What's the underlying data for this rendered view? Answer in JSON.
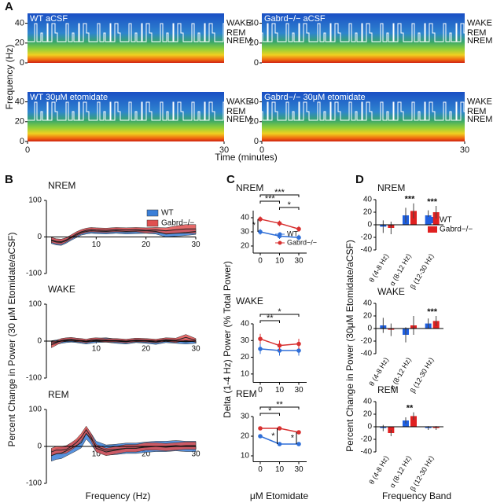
{
  "figure": {
    "panels": [
      "A",
      "B",
      "C",
      "D"
    ],
    "a_y": "Frequency (Hz)",
    "a_x": "Time (minutes)",
    "b_y": "Percent Change in Power (30 μM Etomidate/aCSF)",
    "b_x": "Frequency (Hz)",
    "c_y": "Delta (1-4 Hz) Power (% Total Power)",
    "c_x": "μM Etomidate",
    "d_y": "Percent Change in Power (30μM Etomidate/aCSF)",
    "d_x": "Frequency Band"
  },
  "chart_data": [
    {
      "type": "spectrogram",
      "title": "WT aCSF",
      "states": [
        "WAKE",
        "REM",
        "NREM"
      ],
      "ylim": [
        0,
        50
      ],
      "yticks": [
        0,
        20,
        40
      ]
    },
    {
      "type": "spectrogram",
      "title": "Gabrd−/− aCSF",
      "states": [
        "WAKE",
        "REM",
        "NREM"
      ],
      "ylim": [
        0,
        50
      ],
      "yticks": [
        0,
        20,
        40
      ]
    },
    {
      "type": "spectrogram",
      "title": "WT 30μM etomidate",
      "states": [
        "WAKE",
        "REM",
        "NREM"
      ],
      "ylim": [
        0,
        50
      ],
      "yticks": [
        0,
        20,
        40
      ],
      "xlim": [
        0,
        30
      ],
      "xticks": [
        0,
        30
      ]
    },
    {
      "type": "spectrogram",
      "title": "Gabrd−/− 30μM etomidate",
      "states": [
        "WAKE",
        "REM",
        "NREM"
      ],
      "ylim": [
        0,
        50
      ],
      "yticks": [
        0,
        20,
        40
      ],
      "xlim": [
        0,
        30
      ],
      "xticks": [
        0,
        30
      ]
    },
    {
      "type": "band",
      "title": "NREM",
      "xlim": [
        0,
        30
      ],
      "xticks": [
        10,
        20,
        30
      ],
      "ylim": [
        -100,
        100
      ],
      "yticks": [
        -100,
        0,
        100
      ],
      "x": [
        1,
        2,
        3,
        4,
        5,
        6,
        7,
        8,
        9,
        10,
        12,
        14,
        16,
        18,
        20,
        22,
        24,
        26,
        28,
        30
      ],
      "series": [
        {
          "name": "WT",
          "color": "#3a7fd8",
          "values": [
            -10,
            -14,
            -15,
            -10,
            -2,
            5,
            12,
            15,
            17,
            16,
            15,
            17,
            15,
            16,
            17,
            15,
            8,
            10,
            12,
            15
          ],
          "errors": [
            8,
            8,
            8,
            7,
            7,
            7,
            7,
            7,
            7,
            7,
            7,
            7,
            7,
            7,
            7,
            7,
            8,
            8,
            8,
            8
          ]
        },
        {
          "name": "Gabrd−/−",
          "color": "#e05050",
          "values": [
            -8,
            -12,
            -13,
            -8,
            0,
            8,
            14,
            18,
            20,
            19,
            18,
            20,
            19,
            20,
            18,
            19,
            17,
            20,
            22,
            22
          ],
          "errors": [
            7,
            7,
            7,
            6,
            6,
            6,
            6,
            6,
            6,
            6,
            6,
            6,
            6,
            6,
            7,
            7,
            8,
            10,
            12,
            12
          ]
        }
      ]
    },
    {
      "type": "band",
      "title": "WAKE",
      "xlim": [
        0,
        30
      ],
      "xticks": [
        10,
        20,
        30
      ],
      "ylim": [
        -100,
        100
      ],
      "yticks": [
        -100,
        0,
        100
      ],
      "x": [
        1,
        2,
        3,
        4,
        5,
        6,
        7,
        8,
        9,
        10,
        12,
        14,
        16,
        18,
        20,
        22,
        24,
        26,
        28,
        30
      ],
      "series": [
        {
          "color": "#3a7fd8",
          "values": [
            -5,
            -3,
            0,
            2,
            3,
            2,
            0,
            -2,
            0,
            2,
            3,
            0,
            -2,
            2,
            0,
            -3,
            2,
            0,
            -2,
            0
          ],
          "errors": [
            6,
            6,
            6,
            6,
            6,
            6,
            6,
            6,
            6,
            6,
            6,
            6,
            6,
            6,
            6,
            6,
            6,
            6,
            6,
            6
          ]
        },
        {
          "color": "#e05050",
          "values": [
            -10,
            -5,
            2,
            4,
            5,
            3,
            2,
            0,
            3,
            4,
            2,
            2,
            0,
            3,
            2,
            0,
            4,
            2,
            10,
            2
          ],
          "errors": [
            8,
            6,
            5,
            5,
            5,
            5,
            5,
            5,
            5,
            5,
            5,
            5,
            5,
            5,
            5,
            5,
            5,
            6,
            8,
            5
          ]
        }
      ]
    },
    {
      "type": "band",
      "title": "REM",
      "xlim": [
        0,
        30
      ],
      "xticks": [
        10,
        20,
        30
      ],
      "ylim": [
        -100,
        100
      ],
      "yticks": [
        -100,
        0,
        100
      ],
      "x": [
        1,
        2,
        3,
        4,
        5,
        6,
        7,
        8,
        9,
        10,
        12,
        14,
        16,
        18,
        20,
        22,
        24,
        26,
        28,
        30
      ],
      "series": [
        {
          "color": "#3a7fd8",
          "values": [
            -25,
            -20,
            -18,
            -12,
            -5,
            2,
            10,
            35,
            20,
            0,
            -10,
            -8,
            -5,
            -5,
            -2,
            0,
            0,
            2,
            0,
            0
          ],
          "errors": [
            15,
            15,
            15,
            14,
            14,
            14,
            14,
            15,
            15,
            14,
            14,
            14,
            14,
            14,
            14,
            14,
            14,
            14,
            14,
            14
          ]
        },
        {
          "color": "#e05050",
          "values": [
            -15,
            -10,
            -10,
            -8,
            0,
            10,
            25,
            45,
            25,
            -5,
            -15,
            -10,
            -5,
            -5,
            0,
            0,
            -2,
            0,
            2,
            2
          ],
          "errors": [
            10,
            10,
            10,
            10,
            10,
            10,
            10,
            10,
            10,
            10,
            10,
            10,
            10,
            10,
            10,
            10,
            10,
            10,
            10,
            10
          ]
        }
      ]
    },
    {
      "type": "line",
      "title": "NREM",
      "categories": [
        "0",
        "10",
        "30"
      ],
      "ylim": [
        15,
        45
      ],
      "yticks": [
        20,
        30,
        40
      ],
      "series": [
        {
          "name": "WT",
          "color": "#2f6fd8",
          "values": [
            30,
            27,
            26
          ],
          "errors": [
            2,
            2,
            2
          ]
        },
        {
          "name": "Gabrd−/−",
          "color": "#d83030",
          "values": [
            39,
            36,
            32
          ],
          "errors": [
            2,
            2,
            2
          ]
        }
      ],
      "annotations": [
        {
          "text": "***",
          "from": 0,
          "to": 2
        },
        {
          "text": "***",
          "from": 0,
          "to": 1
        },
        {
          "text": "*",
          "from": 1,
          "to": 2
        },
        {
          "text": "*",
          "at": 0
        }
      ]
    },
    {
      "type": "line",
      "title": "WAKE",
      "categories": [
        "0",
        "10",
        "30"
      ],
      "ylim": [
        5,
        40
      ],
      "yticks": [
        10,
        20,
        30,
        40
      ],
      "series": [
        {
          "color": "#2f6fd8",
          "values": [
            25,
            24,
            24
          ],
          "errors": [
            3,
            3,
            3
          ]
        },
        {
          "color": "#d83030",
          "values": [
            31,
            27,
            28
          ],
          "errors": [
            3,
            3,
            3
          ]
        }
      ],
      "annotations": [
        {
          "text": "*",
          "from": 0,
          "to": 2
        },
        {
          "text": "**",
          "from": 0,
          "to": 1
        }
      ]
    },
    {
      "type": "line",
      "title": "REM",
      "categories": [
        "0",
        "10",
        "30"
      ],
      "ylim": [
        7,
        30
      ],
      "yticks": [
        10,
        20,
        30
      ],
      "series": [
        {
          "color": "#2f6fd8",
          "values": [
            20,
            16,
            16
          ],
          "errors": [
            1,
            1,
            1
          ]
        },
        {
          "color": "#d83030",
          "values": [
            24,
            24,
            22
          ],
          "errors": [
            1,
            1,
            1
          ]
        }
      ],
      "annotations": [
        {
          "text": "**",
          "from": 0,
          "to": 2
        },
        {
          "text": "*",
          "from": 0,
          "to": 1
        },
        {
          "text": "*",
          "at": 1
        },
        {
          "text": "*",
          "at": 2
        }
      ]
    },
    {
      "type": "bar",
      "title": "NREM",
      "categories": [
        "θ (4-8 Hz)",
        "α (8-12 Hz)",
        "β (12-30 Hz)"
      ],
      "ylim": [
        -40,
        40
      ],
      "yticks": [
        -40,
        -20,
        0,
        20,
        40
      ],
      "series": [
        {
          "name": "WT",
          "color": "#1f5fe0",
          "values": [
            -3,
            15,
            15
          ],
          "errors": [
            10,
            12,
            8
          ]
        },
        {
          "name": "Gabrd−/−",
          "color": "#e02020",
          "values": [
            -5,
            22,
            20
          ],
          "errors": [
            10,
            12,
            10
          ]
        }
      ],
      "annotations": [
        {
          "text": "***",
          "at": 1
        },
        {
          "text": "***",
          "at": 2
        }
      ]
    },
    {
      "type": "bar",
      "title": "WAKE",
      "categories": [
        "θ (4-8 Hz)",
        "α (8-12 Hz)",
        "β (12-30 Hz)"
      ],
      "ylim": [
        -40,
        40
      ],
      "yticks": [
        -40,
        -20,
        0,
        20,
        40
      ],
      "series": [
        {
          "color": "#1f5fe0",
          "values": [
            5,
            -10,
            8
          ],
          "errors": [
            12,
            12,
            8
          ]
        },
        {
          "color": "#e02020",
          "values": [
            -2,
            5,
            12
          ],
          "errors": [
            10,
            15,
            8
          ]
        }
      ],
      "annotations": [
        {
          "text": "***",
          "at": 2
        }
      ]
    },
    {
      "type": "bar",
      "title": "REM",
      "categories": [
        "θ (4-8 Hz)",
        "α (8-12 Hz)",
        "β (12-30 Hz)"
      ],
      "ylim": [
        -40,
        40
      ],
      "yticks": [
        -40,
        -20,
        0,
        20,
        40
      ],
      "series": [
        {
          "color": "#1f5fe0",
          "values": [
            -2,
            10,
            -2
          ],
          "errors": [
            5,
            5,
            3
          ]
        },
        {
          "color": "#e02020",
          "values": [
            -10,
            17,
            -2
          ],
          "errors": [
            5,
            6,
            3
          ]
        }
      ],
      "annotations": [
        {
          "text": "**",
          "at": 1
        }
      ]
    }
  ]
}
